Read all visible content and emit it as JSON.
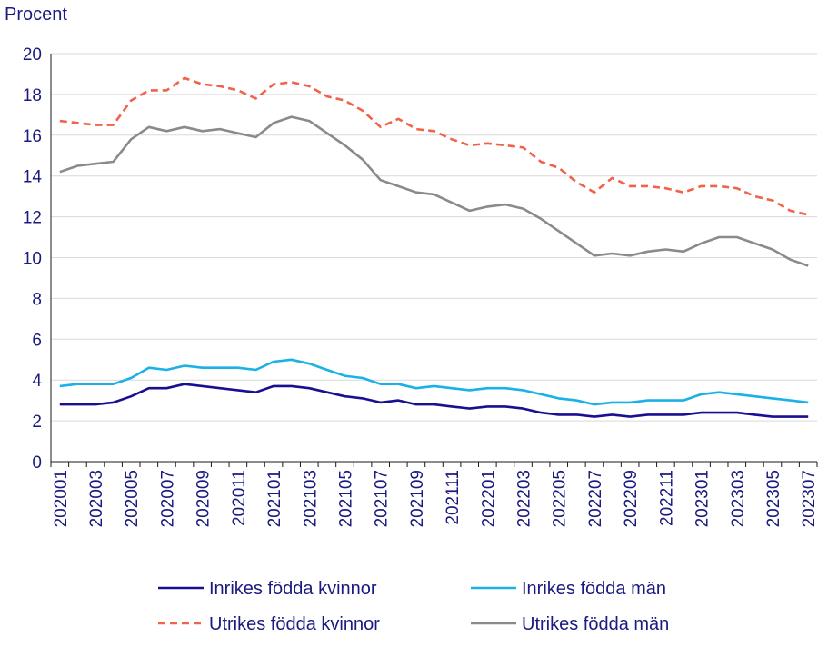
{
  "chart_data": {
    "type": "line",
    "ylabel": "Procent",
    "ylim": [
      0,
      20
    ],
    "yticks": [
      0,
      2,
      4,
      6,
      8,
      10,
      12,
      14,
      16,
      18,
      20
    ],
    "grid": "horizontal",
    "legend_position": "bottom",
    "x": [
      "202001",
      "202002",
      "202003",
      "202004",
      "202005",
      "202006",
      "202007",
      "202008",
      "202009",
      "202010",
      "202011",
      "202012",
      "202101",
      "202102",
      "202103",
      "202104",
      "202105",
      "202106",
      "202107",
      "202108",
      "202109",
      "202110",
      "202111",
      "202112",
      "202201",
      "202202",
      "202203",
      "202204",
      "202205",
      "202206",
      "202207",
      "202208",
      "202209",
      "202210",
      "202211",
      "202212",
      "202301",
      "202302",
      "202303",
      "202304",
      "202305",
      "202306",
      "202307"
    ],
    "xtick_labels": [
      "202001",
      "202003",
      "202005",
      "202007",
      "202009",
      "202011",
      "202101",
      "202103",
      "202105",
      "202107",
      "202109",
      "202111",
      "202201",
      "202203",
      "202205",
      "202207",
      "202209",
      "202211",
      "202301",
      "202303",
      "202305",
      "202307"
    ],
    "series": [
      {
        "name": "Inrikes födda kvinnor",
        "color": "#1a0f91",
        "dash": "solid",
        "values": [
          2.8,
          2.8,
          2.8,
          2.9,
          3.2,
          3.6,
          3.6,
          3.8,
          3.7,
          3.6,
          3.5,
          3.4,
          3.7,
          3.7,
          3.6,
          3.4,
          3.2,
          3.1,
          2.9,
          3.0,
          2.8,
          2.8,
          2.7,
          2.6,
          2.7,
          2.7,
          2.6,
          2.4,
          2.3,
          2.3,
          2.2,
          2.3,
          2.2,
          2.3,
          2.3,
          2.3,
          2.4,
          2.4,
          2.4,
          2.3,
          2.2,
          2.2,
          2.2
        ]
      },
      {
        "name": "Inrikes födda män",
        "color": "#1ab1e6",
        "dash": "solid",
        "values": [
          3.7,
          3.8,
          3.8,
          3.8,
          4.1,
          4.6,
          4.5,
          4.7,
          4.6,
          4.6,
          4.6,
          4.5,
          4.9,
          5.0,
          4.8,
          4.5,
          4.2,
          4.1,
          3.8,
          3.8,
          3.6,
          3.7,
          3.6,
          3.5,
          3.6,
          3.6,
          3.5,
          3.3,
          3.1,
          3.0,
          2.8,
          2.9,
          2.9,
          3.0,
          3.0,
          3.0,
          3.3,
          3.4,
          3.3,
          3.2,
          3.1,
          3.0,
          2.9
        ]
      },
      {
        "name": "Utrikes födda kvinnor",
        "color": "#f0624a",
        "dash": "dashed",
        "values": [
          16.7,
          16.6,
          16.5,
          16.5,
          17.7,
          18.2,
          18.2,
          18.8,
          18.5,
          18.4,
          18.2,
          17.8,
          18.5,
          18.6,
          18.4,
          17.9,
          17.7,
          17.2,
          16.4,
          16.8,
          16.3,
          16.2,
          15.8,
          15.5,
          15.6,
          15.5,
          15.4,
          14.7,
          14.4,
          13.7,
          13.2,
          13.9,
          13.5,
          13.5,
          13.4,
          13.2,
          13.5,
          13.5,
          13.4,
          13.0,
          12.8,
          12.3,
          12.1
        ]
      },
      {
        "name": "Utrikes födda män",
        "color": "#8a8a8a",
        "dash": "solid",
        "values": [
          14.2,
          14.5,
          14.6,
          14.7,
          15.8,
          16.4,
          16.2,
          16.4,
          16.2,
          16.3,
          16.1,
          15.9,
          16.6,
          16.9,
          16.7,
          16.1,
          15.5,
          14.8,
          13.8,
          13.5,
          13.2,
          13.1,
          12.7,
          12.3,
          12.5,
          12.6,
          12.4,
          11.9,
          11.3,
          10.7,
          10.1,
          10.2,
          10.1,
          10.3,
          10.4,
          10.3,
          10.7,
          11.0,
          11.0,
          10.7,
          10.4,
          9.9,
          9.6
        ]
      }
    ]
  }
}
